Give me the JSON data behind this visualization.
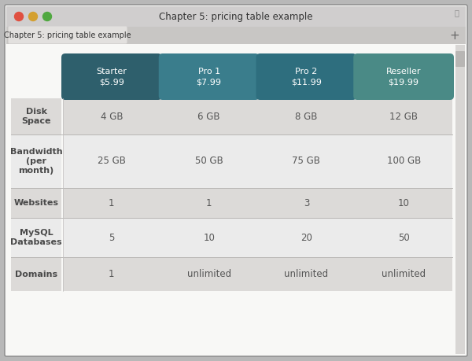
{
  "window_title": "Chapter 5: pricing table example",
  "tab_label": "Chapter 5: pricing table example",
  "outer_bg": "#b8b8b8",
  "window_bg": "#f0eeec",
  "title_bar_color": "#d0cece",
  "tab_bar_color": "#c8c6c4",
  "content_bg": "#f8f8f6",
  "col_headers": [
    {
      "name": "Starter\n$5.99",
      "color": "#2e5f6c"
    },
    {
      "name": "Pro 1\n$7.99",
      "color": "#3a7d8c"
    },
    {
      "name": "Pro 2\n$11.99",
      "color": "#2e6e7e"
    },
    {
      "name": "Reseller\n$19.99",
      "color": "#4a8a86"
    }
  ],
  "row_headers": [
    "Disk\nSpace",
    "Bandwidth\n(per\nmonth)",
    "Websites",
    "MySQL\nDatabases",
    "Domains"
  ],
  "row_bg_a": "#dcdad8",
  "row_bg_b": "#ebebeb",
  "cell_data": [
    [
      "4 GB",
      "6 GB",
      "8 GB",
      "12 GB"
    ],
    [
      "25 GB",
      "50 GB",
      "75 GB",
      "100 GB"
    ],
    [
      "1",
      "1",
      "3",
      "10"
    ],
    [
      "5",
      "10",
      "20",
      "50"
    ],
    [
      "1",
      "unlimited",
      "unlimited",
      "unlimited"
    ]
  ],
  "header_text_color": "#ffffff",
  "row_header_text_color": "#4a4a4a",
  "cell_text_color": "#555555",
  "traffic_lights": [
    "#e05040",
    "#d4a030",
    "#50a840"
  ],
  "scroll_bg": "#d8d6d4",
  "scroll_thumb": "#b8b6b4"
}
